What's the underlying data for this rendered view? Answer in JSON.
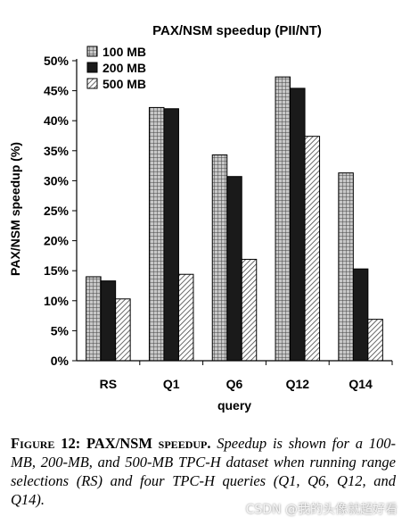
{
  "chart_data": {
    "type": "bar",
    "title": "PAX/NSM speedup (PII/NT)",
    "xlabel": "query",
    "ylabel": "PAX/NSM speedup (%)",
    "categories": [
      "RS",
      "Q1",
      "Q6",
      "Q12",
      "Q14"
    ],
    "series": [
      {
        "name": "100 MB",
        "values": [
          14.0,
          42.2,
          34.3,
          47.3,
          31.3
        ],
        "pattern": "grid"
      },
      {
        "name": "200 MB",
        "values": [
          13.3,
          42.0,
          30.7,
          45.4,
          15.3
        ],
        "pattern": "solid"
      },
      {
        "name": "500 MB",
        "values": [
          10.3,
          14.4,
          16.9,
          37.4,
          6.9
        ],
        "pattern": "hatch"
      }
    ],
    "ylim": [
      0,
      50
    ],
    "yticks": [
      "0%",
      "5%",
      "10%",
      "15%",
      "20%",
      "25%",
      "30%",
      "35%",
      "40%",
      "45%",
      "50%"
    ],
    "grid": false,
    "legend_position": "top-left"
  },
  "caption": {
    "title": "Figure 12: PAX/NSM speedup.",
    "body": "Speedup is shown for a 100-MB, 200-MB, and 500-MB TPC-H dataset when running range selections (RS) and four TPC-H queries (Q1, Q6, Q12, and Q14)."
  },
  "watermark": "CSDN @我的头像就超好看"
}
